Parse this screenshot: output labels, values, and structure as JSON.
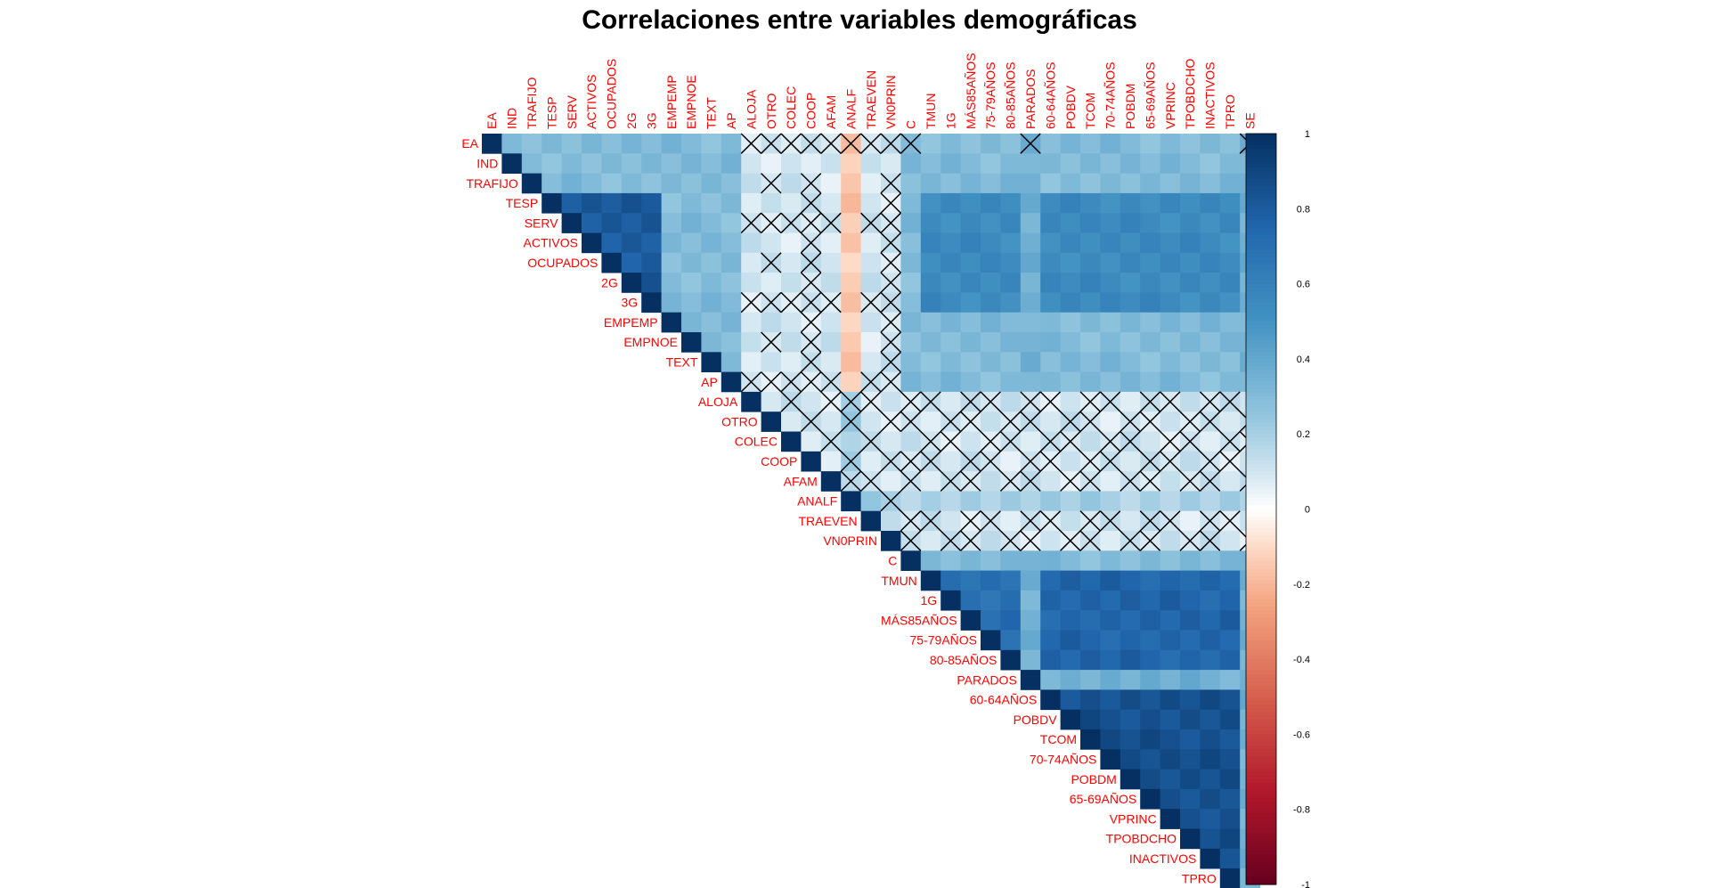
{
  "chart_data": {
    "type": "heatmap",
    "title": "Correlaciones entre variables demográficas",
    "variables": [
      "EA",
      "IND",
      "TRAFIJO",
      "TESP",
      "SERV",
      "ACTIVOS",
      "OCUPADOS",
      "2G",
      "3G",
      "EMPEMP",
      "EMPNOE",
      "TEXT",
      "AP",
      "ALOJA",
      "OTRO",
      "COLEC",
      "COOP",
      "AFAM",
      "ANALF",
      "TRAEVEN",
      "VN0PRIN",
      "C",
      "TMUN",
      "1G",
      "MÁS85AÑOS",
      "75-79AÑOS",
      "80-85AÑOS",
      "PARADOS",
      "60-64AÑOS",
      "POBDV",
      "TCOM",
      "70-74AÑOS",
      "POBDM",
      "65-69AÑOS",
      "VPRINC",
      "TPOBDCHO",
      "INACTIVOS",
      "TPRO",
      "SE"
    ],
    "layout": "upper-triangle",
    "colorbar": {
      "min": -1,
      "max": 1,
      "ticks": [
        "1",
        "0.8",
        "0.6",
        "0.4",
        "0.2",
        "0",
        "-0.2",
        "-0.4",
        "-0.6",
        "-0.8",
        "-1"
      ],
      "low_color": "#67001F",
      "mid_color": "#FFFFFF",
      "high_color": "#053061"
    },
    "label_color": "#FF0000",
    "nonsignificant_marker": "cross"
  }
}
